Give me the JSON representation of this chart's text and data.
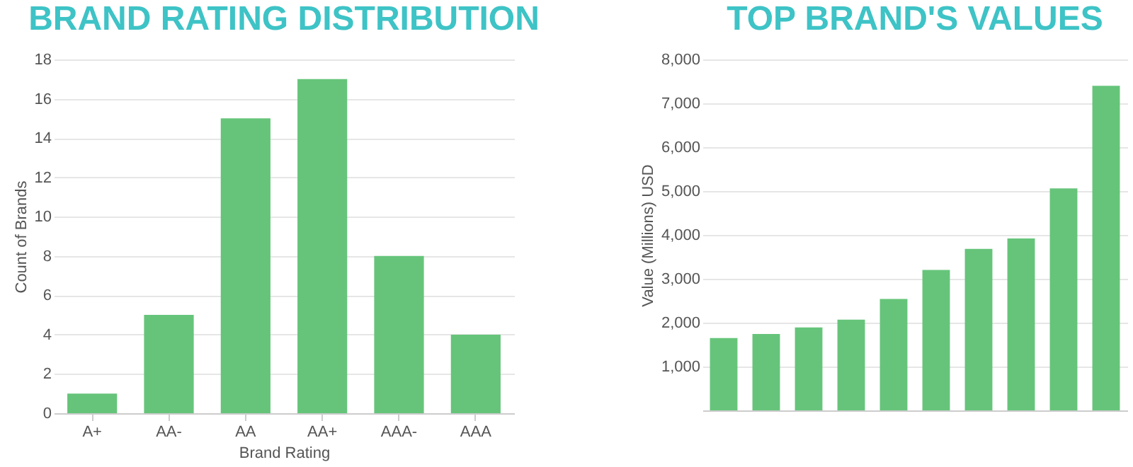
{
  "chart_data": [
    {
      "type": "bar",
      "title": "BRAND RATING DISTRIBUTION",
      "xlabel": "Brand Rating",
      "ylabel": "Count of Brands",
      "categories": [
        "A+",
        "AA-",
        "AA",
        "AA+",
        "AAA-",
        "AAA"
      ],
      "values": [
        1,
        5,
        15,
        17,
        8,
        4
      ],
      "color": "#66c47a",
      "ylim": [
        0,
        18
      ],
      "yticks": [
        0,
        2,
        4,
        6,
        8,
        10,
        12,
        14,
        16,
        18
      ],
      "grid": "y"
    },
    {
      "type": "bar",
      "title": "TOP BRAND'S VALUES",
      "ylabel": "Value (Millions) USD",
      "categories": [
        null,
        null,
        null,
        null,
        null,
        null,
        null,
        null,
        null,
        null
      ],
      "values": [
        1650,
        1740,
        1890,
        2070,
        2540,
        3200,
        3680,
        3920,
        5060,
        7400
      ],
      "color": "#66c47a",
      "ylim": [
        0,
        8000
      ],
      "yticks": [
        {
          "value": 1000,
          "label": "1,000"
        },
        {
          "value": 2000,
          "label": "2,000"
        },
        {
          "value": 3000,
          "label": "3,000"
        },
        {
          "value": 4000,
          "label": "4,000"
        },
        {
          "value": 5000,
          "label": "5,000"
        },
        {
          "value": 6000,
          "label": "6,000"
        },
        {
          "value": 7000,
          "label": "7,000"
        },
        {
          "value": 8000,
          "label": "8,000"
        }
      ],
      "grid": "y",
      "tick_labels": "y"
    }
  ]
}
